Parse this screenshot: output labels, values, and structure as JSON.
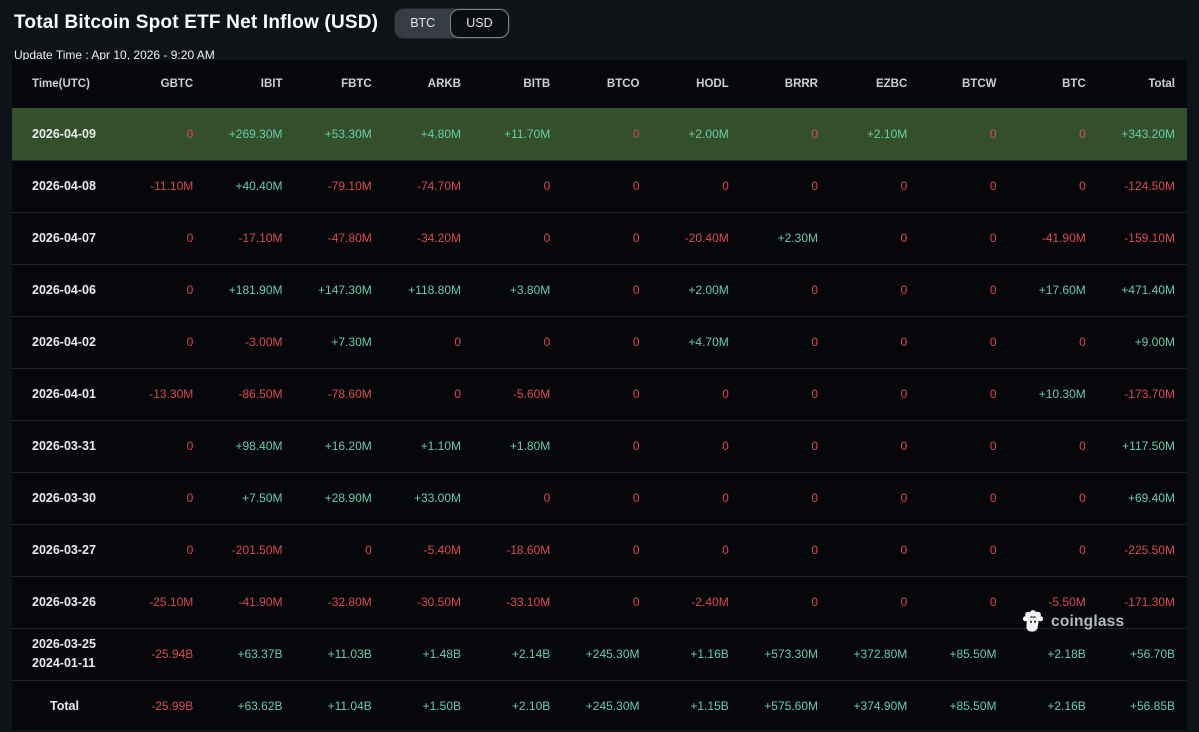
{
  "header": {
    "title": "Total Bitcoin Spot ETF Net Inflow (USD)",
    "toggle": {
      "options": [
        "BTC",
        "USD"
      ],
      "selected": "USD"
    },
    "update_time": "Update Time : Apr 10, 2026 - 9:20 AM"
  },
  "watermark": {
    "brand": "coinglass"
  },
  "colors": {
    "positive": "#67cdaa",
    "negative": "#dc4a50",
    "highlight_row": "#34502a"
  },
  "table": {
    "columns": [
      "Time(UTC)",
      "GBTC",
      "IBIT",
      "FBTC",
      "ARKB",
      "BITB",
      "BTCO",
      "HODL",
      "BRRR",
      "EZBC",
      "BTCW",
      "BTC",
      "Total"
    ],
    "rows": [
      {
        "date_lines": [
          "2026-04-09"
        ],
        "highlight": true,
        "values": [
          "0",
          "+269.30M",
          "+53.30M",
          "+4.80M",
          "+11.70M",
          "0",
          "+2.00M",
          "0",
          "+2.10M",
          "0",
          "0",
          "+343.20M"
        ]
      },
      {
        "date_lines": [
          "2026-04-08"
        ],
        "values": [
          "-11.10M",
          "+40.40M",
          "-79.10M",
          "-74.70M",
          "0",
          "0",
          "0",
          "0",
          "0",
          "0",
          "0",
          "-124.50M"
        ]
      },
      {
        "date_lines": [
          "2026-04-07"
        ],
        "values": [
          "0",
          "-17.10M",
          "-47.80M",
          "-34.20M",
          "0",
          "0",
          "-20.40M",
          "+2.30M",
          "0",
          "0",
          "-41.90M",
          "-159.10M"
        ]
      },
      {
        "date_lines": [
          "2026-04-06"
        ],
        "values": [
          "0",
          "+181.90M",
          "+147.30M",
          "+118.80M",
          "+3.80M",
          "0",
          "+2.00M",
          "0",
          "0",
          "0",
          "+17.60M",
          "+471.40M"
        ]
      },
      {
        "date_lines": [
          "2026-04-02"
        ],
        "values": [
          "0",
          "-3.00M",
          "+7.30M",
          "0",
          "0",
          "0",
          "+4.70M",
          "0",
          "0",
          "0",
          "0",
          "+9.00M"
        ]
      },
      {
        "date_lines": [
          "2026-04-01"
        ],
        "values": [
          "-13.30M",
          "-86.50M",
          "-78.60M",
          "0",
          "-5.60M",
          "0",
          "0",
          "0",
          "0",
          "0",
          "+10.30M",
          "-173.70M"
        ]
      },
      {
        "date_lines": [
          "2026-03-31"
        ],
        "values": [
          "0",
          "+98.40M",
          "+16.20M",
          "+1.10M",
          "+1.80M",
          "0",
          "0",
          "0",
          "0",
          "0",
          "0",
          "+117.50M"
        ]
      },
      {
        "date_lines": [
          "2026-03-30"
        ],
        "values": [
          "0",
          "+7.50M",
          "+28.90M",
          "+33.00M",
          "0",
          "0",
          "0",
          "0",
          "0",
          "0",
          "0",
          "+69.40M"
        ]
      },
      {
        "date_lines": [
          "2026-03-27"
        ],
        "values": [
          "0",
          "-201.50M",
          "0",
          "-5.40M",
          "-18.60M",
          "0",
          "0",
          "0",
          "0",
          "0",
          "0",
          "-225.50M"
        ]
      },
      {
        "date_lines": [
          "2026-03-26"
        ],
        "values": [
          "-25.10M",
          "-41.90M",
          "-32.80M",
          "-30.50M",
          "-33.10M",
          "0",
          "-2.40M",
          "0",
          "0",
          "0",
          "-5.50M",
          "-171.30M"
        ]
      },
      {
        "date_lines": [
          "2026-03-25",
          "2024-01-11"
        ],
        "values": [
          "-25.94B",
          "+63.37B",
          "+11.03B",
          "+1.48B",
          "+2.14B",
          "+245.30M",
          "+1.16B",
          "+573.30M",
          "+372.80M",
          "+85.50M",
          "+2.18B",
          "+56.70B"
        ]
      },
      {
        "date_lines": [
          "Total"
        ],
        "is_total": true,
        "values": [
          "-25.99B",
          "+63.62B",
          "+11.04B",
          "+1.50B",
          "+2.10B",
          "+245.30M",
          "+1.15B",
          "+575.60M",
          "+374.90M",
          "+85.50M",
          "+2.16B",
          "+56.85B"
        ]
      }
    ]
  }
}
